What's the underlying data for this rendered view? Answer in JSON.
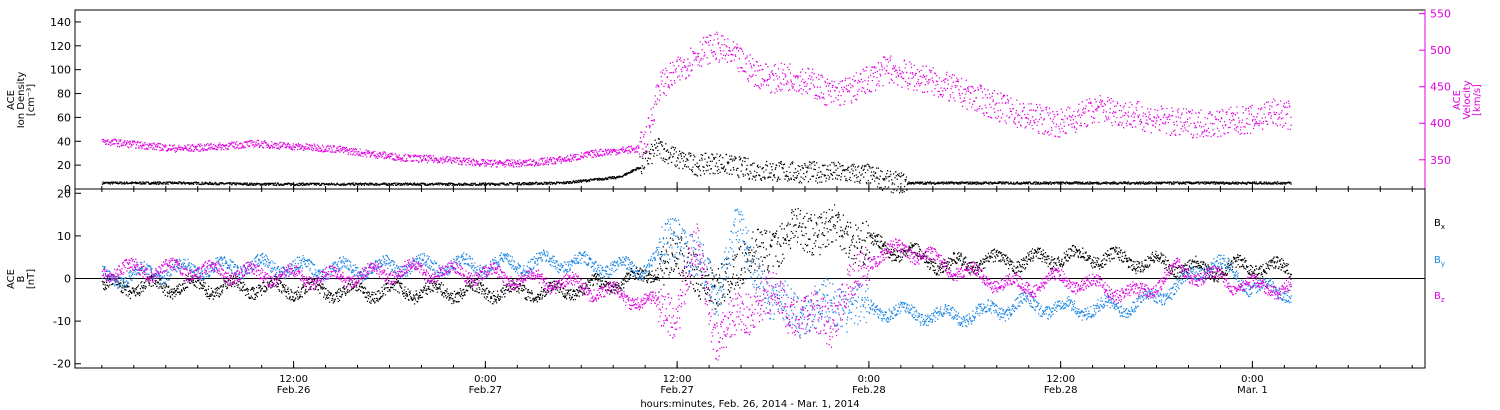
{
  "colors": {
    "black": "#000000",
    "magenta": "#e000e0",
    "blue": "#1e88e5"
  },
  "chart_data": [
    {
      "type": "scatter",
      "panel": "top",
      "ylabel_lines": [
        "ACE",
        "Ion Density",
        "[cm⁻³]"
      ],
      "ylim": [
        0,
        150
      ],
      "yticks": [
        0,
        20,
        40,
        60,
        80,
        100,
        120,
        140
      ],
      "y2label_lines": [
        "ACE",
        "Velocity",
        "[km/s]"
      ],
      "y2lim": [
        310,
        555
      ],
      "y2ticks": [
        350,
        400,
        450,
        500,
        550
      ],
      "grid": false,
      "series": [
        {
          "color": "#000000",
          "axis": "left",
          "x": [
            0.0,
            0.2,
            0.4,
            0.6,
            0.8,
            1.0,
            1.2,
            1.35,
            1.4,
            1.45,
            1.5,
            1.55,
            1.6,
            1.7,
            1.8,
            1.9,
            2.0,
            2.05,
            2.1,
            2.2,
            2.4,
            2.6,
            2.8,
            3.0,
            3.1
          ],
          "y": [
            5,
            5,
            4,
            4,
            4,
            4,
            5,
            10,
            18,
            35,
            25,
            20,
            22,
            16,
            14,
            14,
            12,
            6,
            5,
            5,
            5,
            5,
            5,
            5,
            5
          ]
        },
        {
          "color": "#e000e0",
          "axis": "right",
          "x": [
            0.0,
            0.1,
            0.2,
            0.3,
            0.4,
            0.5,
            0.6,
            0.7,
            0.8,
            0.9,
            1.0,
            1.1,
            1.2,
            1.3,
            1.4,
            1.42,
            1.45,
            1.5,
            1.55,
            1.6,
            1.65,
            1.7,
            1.75,
            1.8,
            1.85,
            1.9,
            1.95,
            2.0,
            2.05,
            2.1,
            2.15,
            2.2,
            2.3,
            2.4,
            2.5,
            2.6,
            2.7,
            2.8,
            2.9,
            3.0,
            3.05,
            3.1
          ],
          "y": [
            375,
            370,
            365,
            368,
            372,
            368,
            365,
            358,
            352,
            350,
            345,
            345,
            350,
            360,
            365,
            380,
            450,
            470,
            495,
            505,
            490,
            470,
            460,
            465,
            455,
            440,
            445,
            460,
            475,
            465,
            460,
            450,
            430,
            410,
            400,
            420,
            410,
            400,
            400,
            405,
            415,
            410
          ]
        }
      ]
    },
    {
      "type": "scatter",
      "panel": "bottom",
      "ylabel_lines": [
        "ACE",
        "B",
        "[nT]"
      ],
      "ylim": [
        -21,
        21
      ],
      "yticks": [
        -20,
        -10,
        0,
        10,
        20
      ],
      "grid": false,
      "legend_position": "right",
      "series": [
        {
          "name": "Bx",
          "color": "#000000",
          "x": [
            0.0,
            0.2,
            0.4,
            0.6,
            0.8,
            1.0,
            1.2,
            1.4,
            1.5,
            1.55,
            1.6,
            1.65,
            1.7,
            1.75,
            1.8,
            1.9,
            2.0,
            2.1,
            2.2,
            2.3,
            2.4,
            2.5,
            2.6,
            2.7,
            2.8,
            2.9,
            3.0,
            3.1
          ],
          "y": [
            -2,
            -2,
            -2,
            -3,
            -3,
            -3,
            -3,
            0,
            5,
            2,
            -4,
            3,
            5,
            8,
            11,
            12,
            8,
            6,
            3,
            4,
            4,
            5,
            5,
            4,
            3,
            2,
            3,
            2
          ]
        },
        {
          "name": "By",
          "color": "#1e88e5",
          "x": [
            0.0,
            0.2,
            0.4,
            0.6,
            0.8,
            1.0,
            1.2,
            1.4,
            1.5,
            1.55,
            1.6,
            1.65,
            1.7,
            1.75,
            1.8,
            1.9,
            2.0,
            2.1,
            2.2,
            2.3,
            2.4,
            2.5,
            2.6,
            2.7,
            2.8,
            2.9,
            3.0,
            3.1
          ],
          "y": [
            0,
            2,
            3,
            2,
            3,
            3,
            4,
            2,
            10,
            5,
            -5,
            13,
            2,
            -5,
            -8,
            -6,
            -7,
            -8,
            -9,
            -8,
            -6,
            -7,
            -7,
            -6,
            -2,
            4,
            -2,
            -3
          ]
        },
        {
          "name": "Bz",
          "color": "#e000e0",
          "x": [
            0.0,
            0.2,
            0.4,
            0.6,
            0.8,
            1.0,
            1.2,
            1.4,
            1.5,
            1.55,
            1.6,
            1.65,
            1.7,
            1.75,
            1.8,
            1.9,
            2.0,
            2.1,
            2.2,
            2.3,
            2.4,
            2.5,
            2.6,
            2.7,
            2.8,
            2.9,
            3.0,
            3.1
          ],
          "y": [
            2,
            2,
            1,
            0,
            2,
            1,
            -1,
            -5,
            -8,
            8,
            -14,
            -10,
            -6,
            -4,
            -8,
            -10,
            5,
            7,
            3,
            0,
            -2,
            0,
            -2,
            -4,
            2,
            0,
            -2,
            -2
          ]
        }
      ]
    }
  ],
  "legend": {
    "bx": "B",
    "bx_sub": "x",
    "by": "B",
    "by_sub": "y",
    "bz": "B",
    "bz_sub": "z"
  },
  "x_axis": {
    "ticks": [
      {
        "x": 0.5,
        "time": "12:00",
        "date": "Feb.26"
      },
      {
        "x": 1.0,
        "time": "0:00",
        "date": "Feb.27"
      },
      {
        "x": 1.5,
        "time": "12:00",
        "date": "Feb.27"
      },
      {
        "x": 2.0,
        "time": "0:00",
        "date": "Feb.28"
      },
      {
        "x": 2.5,
        "time": "12:00",
        "date": "Feb.28"
      },
      {
        "x": 3.0,
        "time": "0:00",
        "date": "Mar. 1"
      }
    ],
    "label": "hours:minutes, Feb. 26, 2014 - Mar.  1, 2014"
  }
}
